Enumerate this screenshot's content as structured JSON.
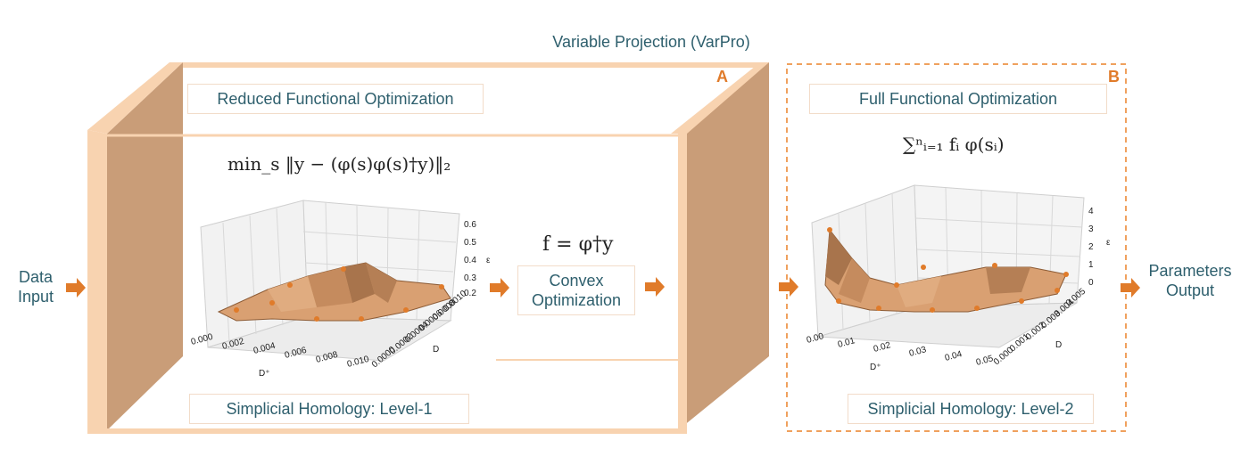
{
  "header": {
    "title": "Variable Projection (VarPro)"
  },
  "panel_a": {
    "letter": "A",
    "top_label": "Reduced Functional Optimization",
    "formula": "min_s ‖y − (φ(s)φ(s)†y)‖₂",
    "bottom_label": "Simplicial Homology: Level-1",
    "z_ticks": [
      "0.2",
      "0.3",
      "0.4",
      "0.5",
      "0.6"
    ],
    "z_axis": "ε",
    "x_ticks": [
      "0.000",
      "0.002",
      "0.004",
      "0.006",
      "0.008",
      "0.010"
    ],
    "x_axis": "D⁺",
    "y_ticks": [
      "0.0000",
      "0.0002",
      "0.0004",
      "0.0006",
      "0.0008",
      "0.0010"
    ],
    "y_axis": "D"
  },
  "convex": {
    "formula": "f = φ†y",
    "label_line1": "Convex",
    "label_line2": "Optimization"
  },
  "panel_b": {
    "letter": "B",
    "top_label": "Full Functional Optimization",
    "formula": "∑ⁿᵢ₌₁ fᵢ φ(sᵢ)",
    "bottom_label": "Simplicial Homology: Level-2",
    "z_ticks": [
      "0",
      "1",
      "2",
      "3",
      "4"
    ],
    "z_axis": "ε",
    "x_ticks": [
      "0.00",
      "0.01",
      "0.02",
      "0.03",
      "0.04",
      "0.05"
    ],
    "x_axis": "D⁺",
    "y_ticks": [
      "0.000",
      "0.001",
      "0.002",
      "0.003",
      "0.004",
      "0.005"
    ],
    "y_axis": "D"
  },
  "input": {
    "line1": "Data",
    "line2": "Input"
  },
  "output": {
    "line1": "Parameters",
    "line2": "Output"
  },
  "colors": {
    "accent": "#e07b2a",
    "wall": "#c99d78",
    "frame": "#f8d3b0",
    "text": "#2e5f6d",
    "surface": "#d9a072"
  }
}
